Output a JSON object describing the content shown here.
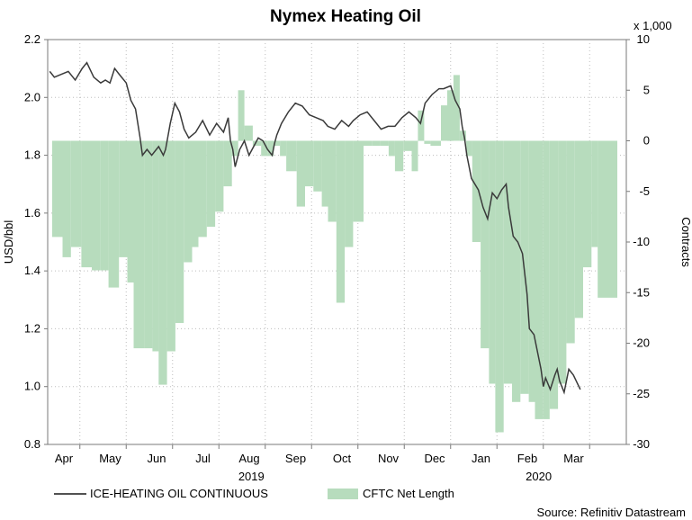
{
  "chart_data": {
    "type": "bar+line",
    "title": "Nymex Heating Oil",
    "y_left_label": "USD/bbl",
    "y_right_label": "Contracts",
    "y_right_unit": "x 1,000",
    "y_left_lim": [
      0.8,
      2.2
    ],
    "y_left_ticks": [
      "0.8",
      "1.0",
      "1.2",
      "1.4",
      "1.6",
      "1.8",
      "2.0",
      "2.2"
    ],
    "y_right_lim": [
      -30,
      10
    ],
    "y_right_ticks": [
      "-30",
      "-25",
      "-20",
      "-15",
      "-10",
      "-5",
      "0",
      "5",
      "10"
    ],
    "x_months": [
      "Apr",
      "May",
      "Jun",
      "Jul",
      "Aug",
      "Sep",
      "Oct",
      "Nov",
      "Dec",
      "Jan",
      "Feb",
      "Mar"
    ],
    "x_years": [
      "2019",
      "2020"
    ],
    "legend": {
      "line_label": "ICE-HEATING OIL CONTINUOUS",
      "bar_label": "CFTC Net Length"
    },
    "source": "Source: Refinitiv Datastream",
    "colors": {
      "line": "#3a3a3a",
      "bars": "#b7dcbd",
      "bar_edge": "#9fcca6",
      "grid": "#bdbdbd"
    },
    "series_line": {
      "name": "ICE-HEATING OIL CONTINUOUS",
      "points": [
        [
          0.0,
          2.09
        ],
        [
          0.1,
          2.07
        ],
        [
          0.25,
          2.08
        ],
        [
          0.4,
          2.09
        ],
        [
          0.55,
          2.06
        ],
        [
          0.7,
          2.1
        ],
        [
          0.8,
          2.12
        ],
        [
          0.95,
          2.07
        ],
        [
          1.1,
          2.05
        ],
        [
          1.2,
          2.06
        ],
        [
          1.3,
          2.05
        ],
        [
          1.4,
          2.1
        ],
        [
          1.5,
          2.08
        ],
        [
          1.65,
          2.05
        ],
        [
          1.75,
          1.99
        ],
        [
          1.85,
          1.96
        ],
        [
          1.95,
          1.86
        ],
        [
          2.0,
          1.8
        ],
        [
          2.1,
          1.82
        ],
        [
          2.2,
          1.8
        ],
        [
          2.35,
          1.83
        ],
        [
          2.45,
          1.8
        ],
        [
          2.5,
          1.82
        ],
        [
          2.6,
          1.91
        ],
        [
          2.7,
          1.98
        ],
        [
          2.8,
          1.95
        ],
        [
          2.9,
          1.89
        ],
        [
          3.0,
          1.86
        ],
        [
          3.15,
          1.88
        ],
        [
          3.3,
          1.92
        ],
        [
          3.45,
          1.87
        ],
        [
          3.6,
          1.91
        ],
        [
          3.75,
          1.88
        ],
        [
          3.85,
          1.93
        ],
        [
          3.9,
          1.85
        ],
        [
          3.95,
          1.82
        ],
        [
          4.0,
          1.76
        ],
        [
          4.1,
          1.82
        ],
        [
          4.2,
          1.85
        ],
        [
          4.3,
          1.8
        ],
        [
          4.4,
          1.83
        ],
        [
          4.5,
          1.86
        ],
        [
          4.6,
          1.85
        ],
        [
          4.7,
          1.82
        ],
        [
          4.8,
          1.8
        ],
        [
          4.85,
          1.84
        ],
        [
          4.9,
          1.87
        ],
        [
          5.0,
          1.91
        ],
        [
          5.15,
          1.95
        ],
        [
          5.3,
          1.98
        ],
        [
          5.45,
          1.97
        ],
        [
          5.6,
          1.94
        ],
        [
          5.75,
          1.93
        ],
        [
          5.9,
          1.92
        ],
        [
          6.0,
          1.9
        ],
        [
          6.15,
          1.89
        ],
        [
          6.3,
          1.92
        ],
        [
          6.45,
          1.9
        ],
        [
          6.55,
          1.92
        ],
        [
          6.7,
          1.94
        ],
        [
          6.85,
          1.95
        ],
        [
          7.0,
          1.92
        ],
        [
          7.15,
          1.89
        ],
        [
          7.3,
          1.9
        ],
        [
          7.45,
          1.9
        ],
        [
          7.6,
          1.93
        ],
        [
          7.75,
          1.95
        ],
        [
          7.9,
          1.93
        ],
        [
          8.0,
          1.91
        ],
        [
          8.1,
          1.98
        ],
        [
          8.25,
          2.01
        ],
        [
          8.4,
          2.03
        ],
        [
          8.5,
          2.03
        ],
        [
          8.65,
          2.04
        ],
        [
          8.75,
          1.99
        ],
        [
          8.85,
          1.96
        ],
        [
          8.9,
          1.9
        ],
        [
          8.95,
          1.86
        ],
        [
          9.0,
          1.8
        ],
        [
          9.1,
          1.72
        ],
        [
          9.25,
          1.68
        ],
        [
          9.35,
          1.62
        ],
        [
          9.45,
          1.58
        ],
        [
          9.55,
          1.67
        ],
        [
          9.65,
          1.65
        ],
        [
          9.75,
          1.68
        ],
        [
          9.85,
          1.7
        ],
        [
          9.9,
          1.62
        ],
        [
          10.0,
          1.52
        ],
        [
          10.1,
          1.5
        ],
        [
          10.2,
          1.46
        ],
        [
          10.3,
          1.32
        ],
        [
          10.35,
          1.2
        ],
        [
          10.45,
          1.18
        ],
        [
          10.6,
          1.06
        ],
        [
          10.65,
          1.0
        ],
        [
          10.7,
          1.03
        ],
        [
          10.8,
          0.99
        ],
        [
          10.9,
          1.04
        ],
        [
          10.95,
          1.06
        ],
        [
          11.0,
          1.02
        ],
        [
          11.1,
          0.98
        ],
        [
          11.2,
          1.06
        ],
        [
          11.3,
          1.04
        ],
        [
          11.45,
          0.99
        ]
      ]
    },
    "series_bars": {
      "name": "CFTC Net Length",
      "bars": [
        [
          0.0,
          -9.5
        ],
        [
          0.25,
          -11.5
        ],
        [
          0.45,
          -10.5
        ],
        [
          0.7,
          -12.5
        ],
        [
          0.95,
          -12.8
        ],
        [
          1.15,
          -12.8
        ],
        [
          1.35,
          -14.5
        ],
        [
          1.6,
          -11.5
        ],
        [
          1.8,
          -14
        ],
        [
          1.95,
          -20.5
        ],
        [
          2.2,
          -20.5
        ],
        [
          2.4,
          -20.8
        ],
        [
          2.55,
          -24.1
        ],
        [
          2.75,
          -20.8
        ],
        [
          2.95,
          -18
        ],
        [
          3.15,
          -12
        ],
        [
          3.35,
          -10.5
        ],
        [
          3.5,
          -9.5
        ],
        [
          3.7,
          -8.5
        ],
        [
          3.9,
          -7
        ],
        [
          4.1,
          -4.5
        ],
        [
          4.3,
          -1.5
        ],
        [
          4.45,
          5
        ],
        [
          4.6,
          1.5
        ],
        [
          4.8,
          -0.5
        ],
        [
          5.0,
          -1.5
        ],
        [
          5.15,
          -1.5
        ],
        [
          5.3,
          -0.5
        ],
        [
          5.45,
          -1.5
        ],
        [
          5.6,
          -3
        ],
        [
          5.85,
          -6.5
        ],
        [
          6.05,
          -4.5
        ],
        [
          6.25,
          -5
        ],
        [
          6.45,
          -6.5
        ],
        [
          6.6,
          -8
        ],
        [
          6.8,
          -16
        ],
        [
          7.0,
          -10.5
        ],
        [
          7.2,
          -8
        ],
        [
          7.45,
          -0.5
        ],
        [
          7.65,
          -0.5
        ],
        [
          7.85,
          -0.5
        ],
        [
          8.05,
          -1.5
        ],
        [
          8.2,
          -3
        ],
        [
          8.4,
          -1
        ],
        [
          8.6,
          -3
        ],
        [
          8.75,
          3
        ],
        [
          8.9,
          -0.3
        ],
        [
          9.05,
          -0.5
        ],
        [
          9.3,
          3.5
        ],
        [
          9.45,
          5
        ],
        [
          9.6,
          6.5
        ],
        [
          9.75,
          1
        ],
        [
          9.9,
          -1.5
        ],
        [
          10.05,
          -10
        ],
        [
          10.25,
          -20.5
        ],
        [
          10.45,
          -24
        ],
        [
          10.6,
          -28.8
        ],
        [
          10.8,
          -24
        ],
        [
          11.0,
          -25.8
        ],
        [
          11.2,
          -25
        ],
        [
          11.4,
          -25.8
        ],
        [
          11.55,
          -27.5
        ],
        [
          11.75,
          -27.5
        ],
        [
          11.9,
          -26.5
        ],
        [
          12.1,
          -24
        ],
        [
          12.3,
          -20
        ],
        [
          12.5,
          -17.5
        ],
        [
          12.7,
          -12.5
        ],
        [
          12.9,
          -10.5
        ],
        [
          13.05,
          -15.5
        ]
      ]
    }
  }
}
